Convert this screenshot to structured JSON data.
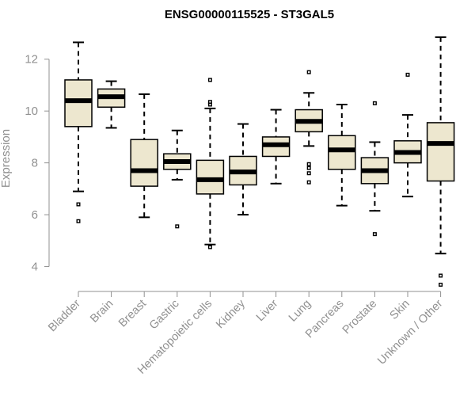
{
  "chart_data": {
    "type": "boxplot",
    "title": "ENSG00000115525 - ST3GAL5",
    "xlabel": "",
    "ylabel": "Expression",
    "ylim": [
      3.1,
      13.0
    ],
    "yticks": [
      4,
      6,
      8,
      10,
      12
    ],
    "box_color": "#ede7cf",
    "categories": [
      "Bladder",
      "Brain",
      "Breast",
      "Gastric",
      "Hematopoietic cells",
      "Kidney",
      "Liver",
      "Lung",
      "Pancreas",
      "Prostate",
      "Skin",
      "Unknown / Other"
    ],
    "boxes": [
      {
        "whislo": 6.9,
        "q1": 9.4,
        "med": 10.4,
        "q3": 11.2,
        "whishi": 12.65,
        "fliers": [
          6.4,
          5.75
        ]
      },
      {
        "whislo": 9.35,
        "q1": 10.15,
        "med": 10.55,
        "q3": 10.85,
        "whishi": 11.15,
        "fliers": []
      },
      {
        "whislo": 5.9,
        "q1": 7.1,
        "med": 7.7,
        "q3": 8.9,
        "whishi": 10.65,
        "fliers": []
      },
      {
        "whislo": 7.35,
        "q1": 7.75,
        "med": 8.05,
        "q3": 8.35,
        "whishi": 9.25,
        "fliers": [
          5.55
        ]
      },
      {
        "whislo": 4.85,
        "q1": 6.8,
        "med": 7.35,
        "q3": 8.1,
        "whishi": 10.1,
        "fliers": [
          11.2,
          10.35,
          10.25,
          4.75
        ]
      },
      {
        "whislo": 6.0,
        "q1": 7.15,
        "med": 7.65,
        "q3": 8.25,
        "whishi": 9.5,
        "fliers": []
      },
      {
        "whislo": 7.2,
        "q1": 8.25,
        "med": 8.7,
        "q3": 9.0,
        "whishi": 10.05,
        "fliers": []
      },
      {
        "whislo": 8.65,
        "q1": 9.2,
        "med": 9.6,
        "q3": 10.05,
        "whishi": 10.7,
        "fliers": [
          11.5,
          7.95,
          7.8,
          7.6,
          7.25
        ]
      },
      {
        "whislo": 6.35,
        "q1": 7.75,
        "med": 8.5,
        "q3": 9.05,
        "whishi": 10.25,
        "fliers": []
      },
      {
        "whislo": 6.15,
        "q1": 7.2,
        "med": 7.7,
        "q3": 8.2,
        "whishi": 8.8,
        "fliers": [
          10.3,
          5.25
        ]
      },
      {
        "whislo": 6.7,
        "q1": 8.0,
        "med": 8.4,
        "q3": 8.85,
        "whishi": 9.85,
        "fliers": [
          11.4
        ]
      },
      {
        "whislo": 4.5,
        "q1": 7.3,
        "med": 8.75,
        "q3": 9.55,
        "whishi": 12.85,
        "fliers": [
          3.65,
          3.3
        ]
      }
    ]
  }
}
